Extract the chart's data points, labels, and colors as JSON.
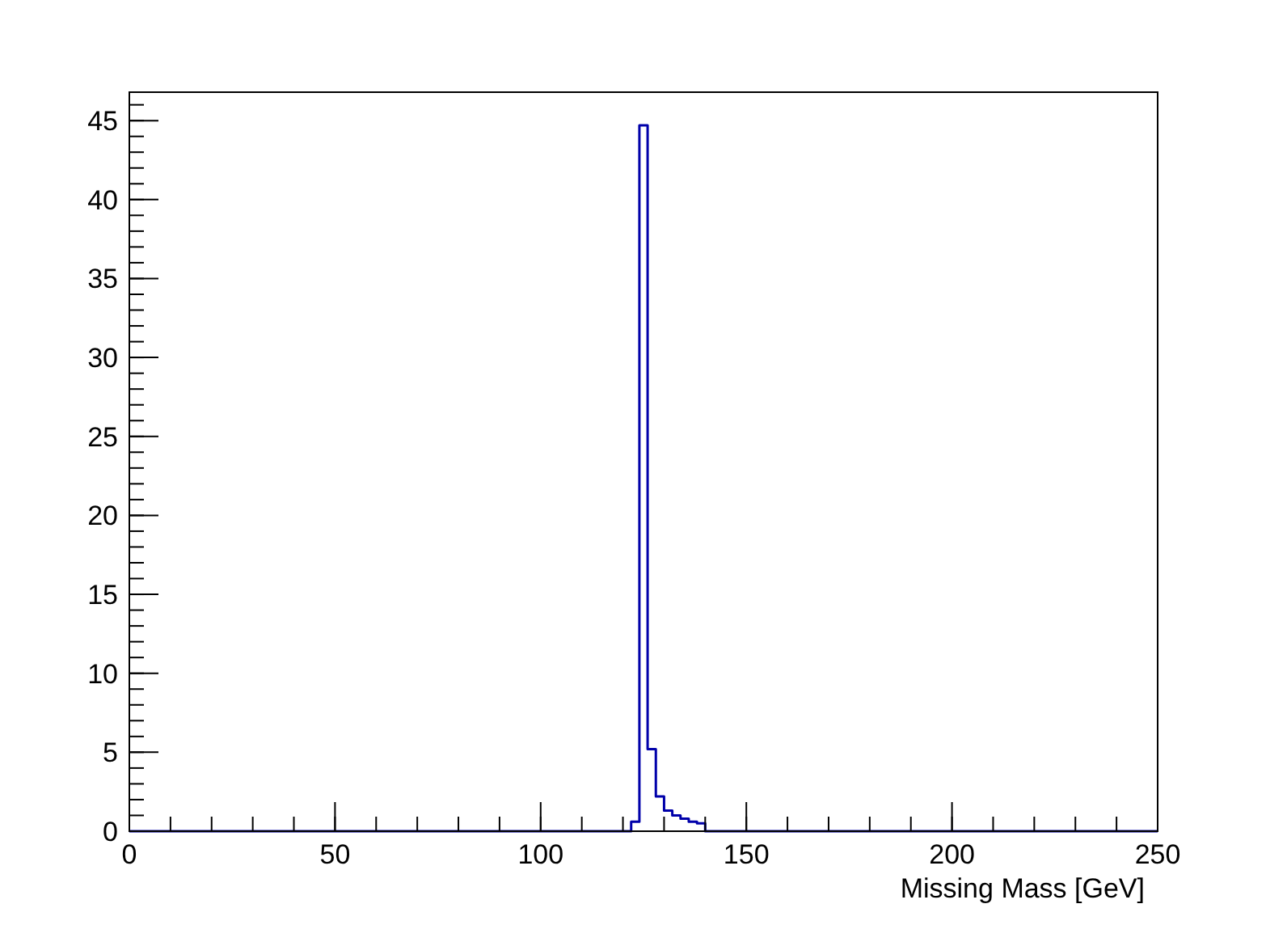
{
  "chart_data": {
    "type": "histogram",
    "xlabel": "Missing Mass [GeV]",
    "bins": [
      0,
      122,
      124,
      126,
      128,
      130,
      132,
      134,
      136,
      138,
      140,
      250
    ],
    "values": [
      0,
      0.6,
      44.7,
      5.2,
      2.2,
      1.3,
      1.0,
      0.8,
      0.6,
      0.5,
      0
    ],
    "color": "#0000aa",
    "xlim": [
      0,
      250
    ],
    "xticks": [
      0,
      50,
      100,
      150,
      200,
      250
    ],
    "ylim": [
      0,
      46.8
    ],
    "yticks": [
      0,
      5,
      10,
      15,
      20,
      25,
      30,
      35,
      40,
      45
    ],
    "grid": false
  }
}
